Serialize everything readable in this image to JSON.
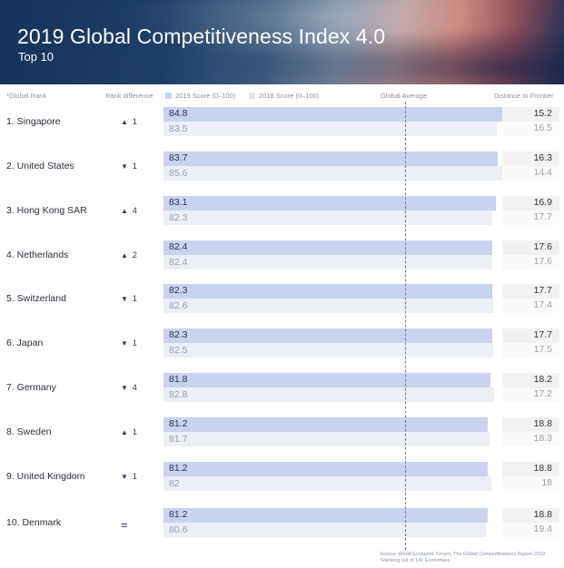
{
  "header": {
    "title": "2019 Global Competitiveness Index 4.0",
    "subtitle": "Top 10"
  },
  "columns": {
    "rank": "*Global Rank",
    "rank_difference": "Rank difference",
    "score_2019": "2019 Score (0–100)",
    "score_2018": "2018 Score (0–100)",
    "global_average": "Global Average",
    "distance": "Distance to Frontier"
  },
  "colors": {
    "bar_2019": "#c8d3ef",
    "bar_2018": "#eceff5",
    "accent": "#2a3a66"
  },
  "chart_data": {
    "type": "bar",
    "title": "2019 Global Competitiveness Index 4.0",
    "subtitle": "Top 10",
    "xlim": [
      0,
      100
    ],
    "legend": [
      "2019 Score (0–100)",
      "2018 Score (0–100)"
    ],
    "rows": [
      {
        "rank_label": "1. Singapore",
        "change_dir": "up",
        "change": "1",
        "score_2019": 84.8,
        "score_2018": 83.5,
        "score_2019_text": "84.8",
        "score_2018_text": "83.5",
        "distance_2019": "15.2",
        "distance_2018": "16.5"
      },
      {
        "rank_label": "2. United States",
        "change_dir": "down",
        "change": "1",
        "score_2019": 83.7,
        "score_2018": 85.6,
        "score_2019_text": "83.7",
        "score_2018_text": "85.6",
        "distance_2019": "16.3",
        "distance_2018": "14.4"
      },
      {
        "rank_label": "3. Hong Kong SAR",
        "change_dir": "up",
        "change": "4",
        "score_2019": 83.1,
        "score_2018": 82.3,
        "score_2019_text": "83.1",
        "score_2018_text": "82.3",
        "distance_2019": "16.9",
        "distance_2018": "17.7"
      },
      {
        "rank_label": "4. Netherlands",
        "change_dir": "up",
        "change": "2",
        "score_2019": 82.4,
        "score_2018": 82.4,
        "score_2019_text": "82.4",
        "score_2018_text": "82.4",
        "distance_2019": "17.6",
        "distance_2018": "17.6"
      },
      {
        "rank_label": "5. Switzerland",
        "change_dir": "down",
        "change": "1",
        "score_2019": 82.3,
        "score_2018": 82.6,
        "score_2019_text": "82.3",
        "score_2018_text": "82.6",
        "distance_2019": "17.7",
        "distance_2018": "17.4"
      },
      {
        "rank_label": "6. Japan",
        "change_dir": "down",
        "change": "1",
        "score_2019": 82.3,
        "score_2018": 82.5,
        "score_2019_text": "82.3",
        "score_2018_text": "82.5",
        "distance_2019": "17.7",
        "distance_2018": "17.5"
      },
      {
        "rank_label": "7. Germany",
        "change_dir": "down",
        "change": "4",
        "score_2019": 81.8,
        "score_2018": 82.8,
        "score_2019_text": "81.8",
        "score_2018_text": "82.8",
        "distance_2019": "18.2",
        "distance_2018": "17.2"
      },
      {
        "rank_label": "8. Sweden",
        "change_dir": "up",
        "change": "1",
        "score_2019": 81.2,
        "score_2018": 81.7,
        "score_2019_text": "81.2",
        "score_2018_text": "81.7",
        "distance_2019": "18.8",
        "distance_2018": "18.3"
      },
      {
        "rank_label": "9. United Kingdom",
        "change_dir": "down",
        "change": "1",
        "score_2019": 81.2,
        "score_2018": 82,
        "score_2019_text": "81.2",
        "score_2018_text": "82",
        "distance_2019": "18.8",
        "distance_2018": "18"
      },
      {
        "rank_label": "10. Denmark",
        "change_dir": "same",
        "change": "",
        "score_2019": 81.2,
        "score_2018": 80.6,
        "score_2019_text": "81.2",
        "score_2018_text": "80.6",
        "distance_2019": "18.8",
        "distance_2018": "19.4"
      }
    ]
  },
  "footer": {
    "source_prefix": "Source: World Economic Forum, ",
    "source_title": "The Global Competitiveness Report 2019",
    "note": "*Ranking out of 141 Economies"
  }
}
